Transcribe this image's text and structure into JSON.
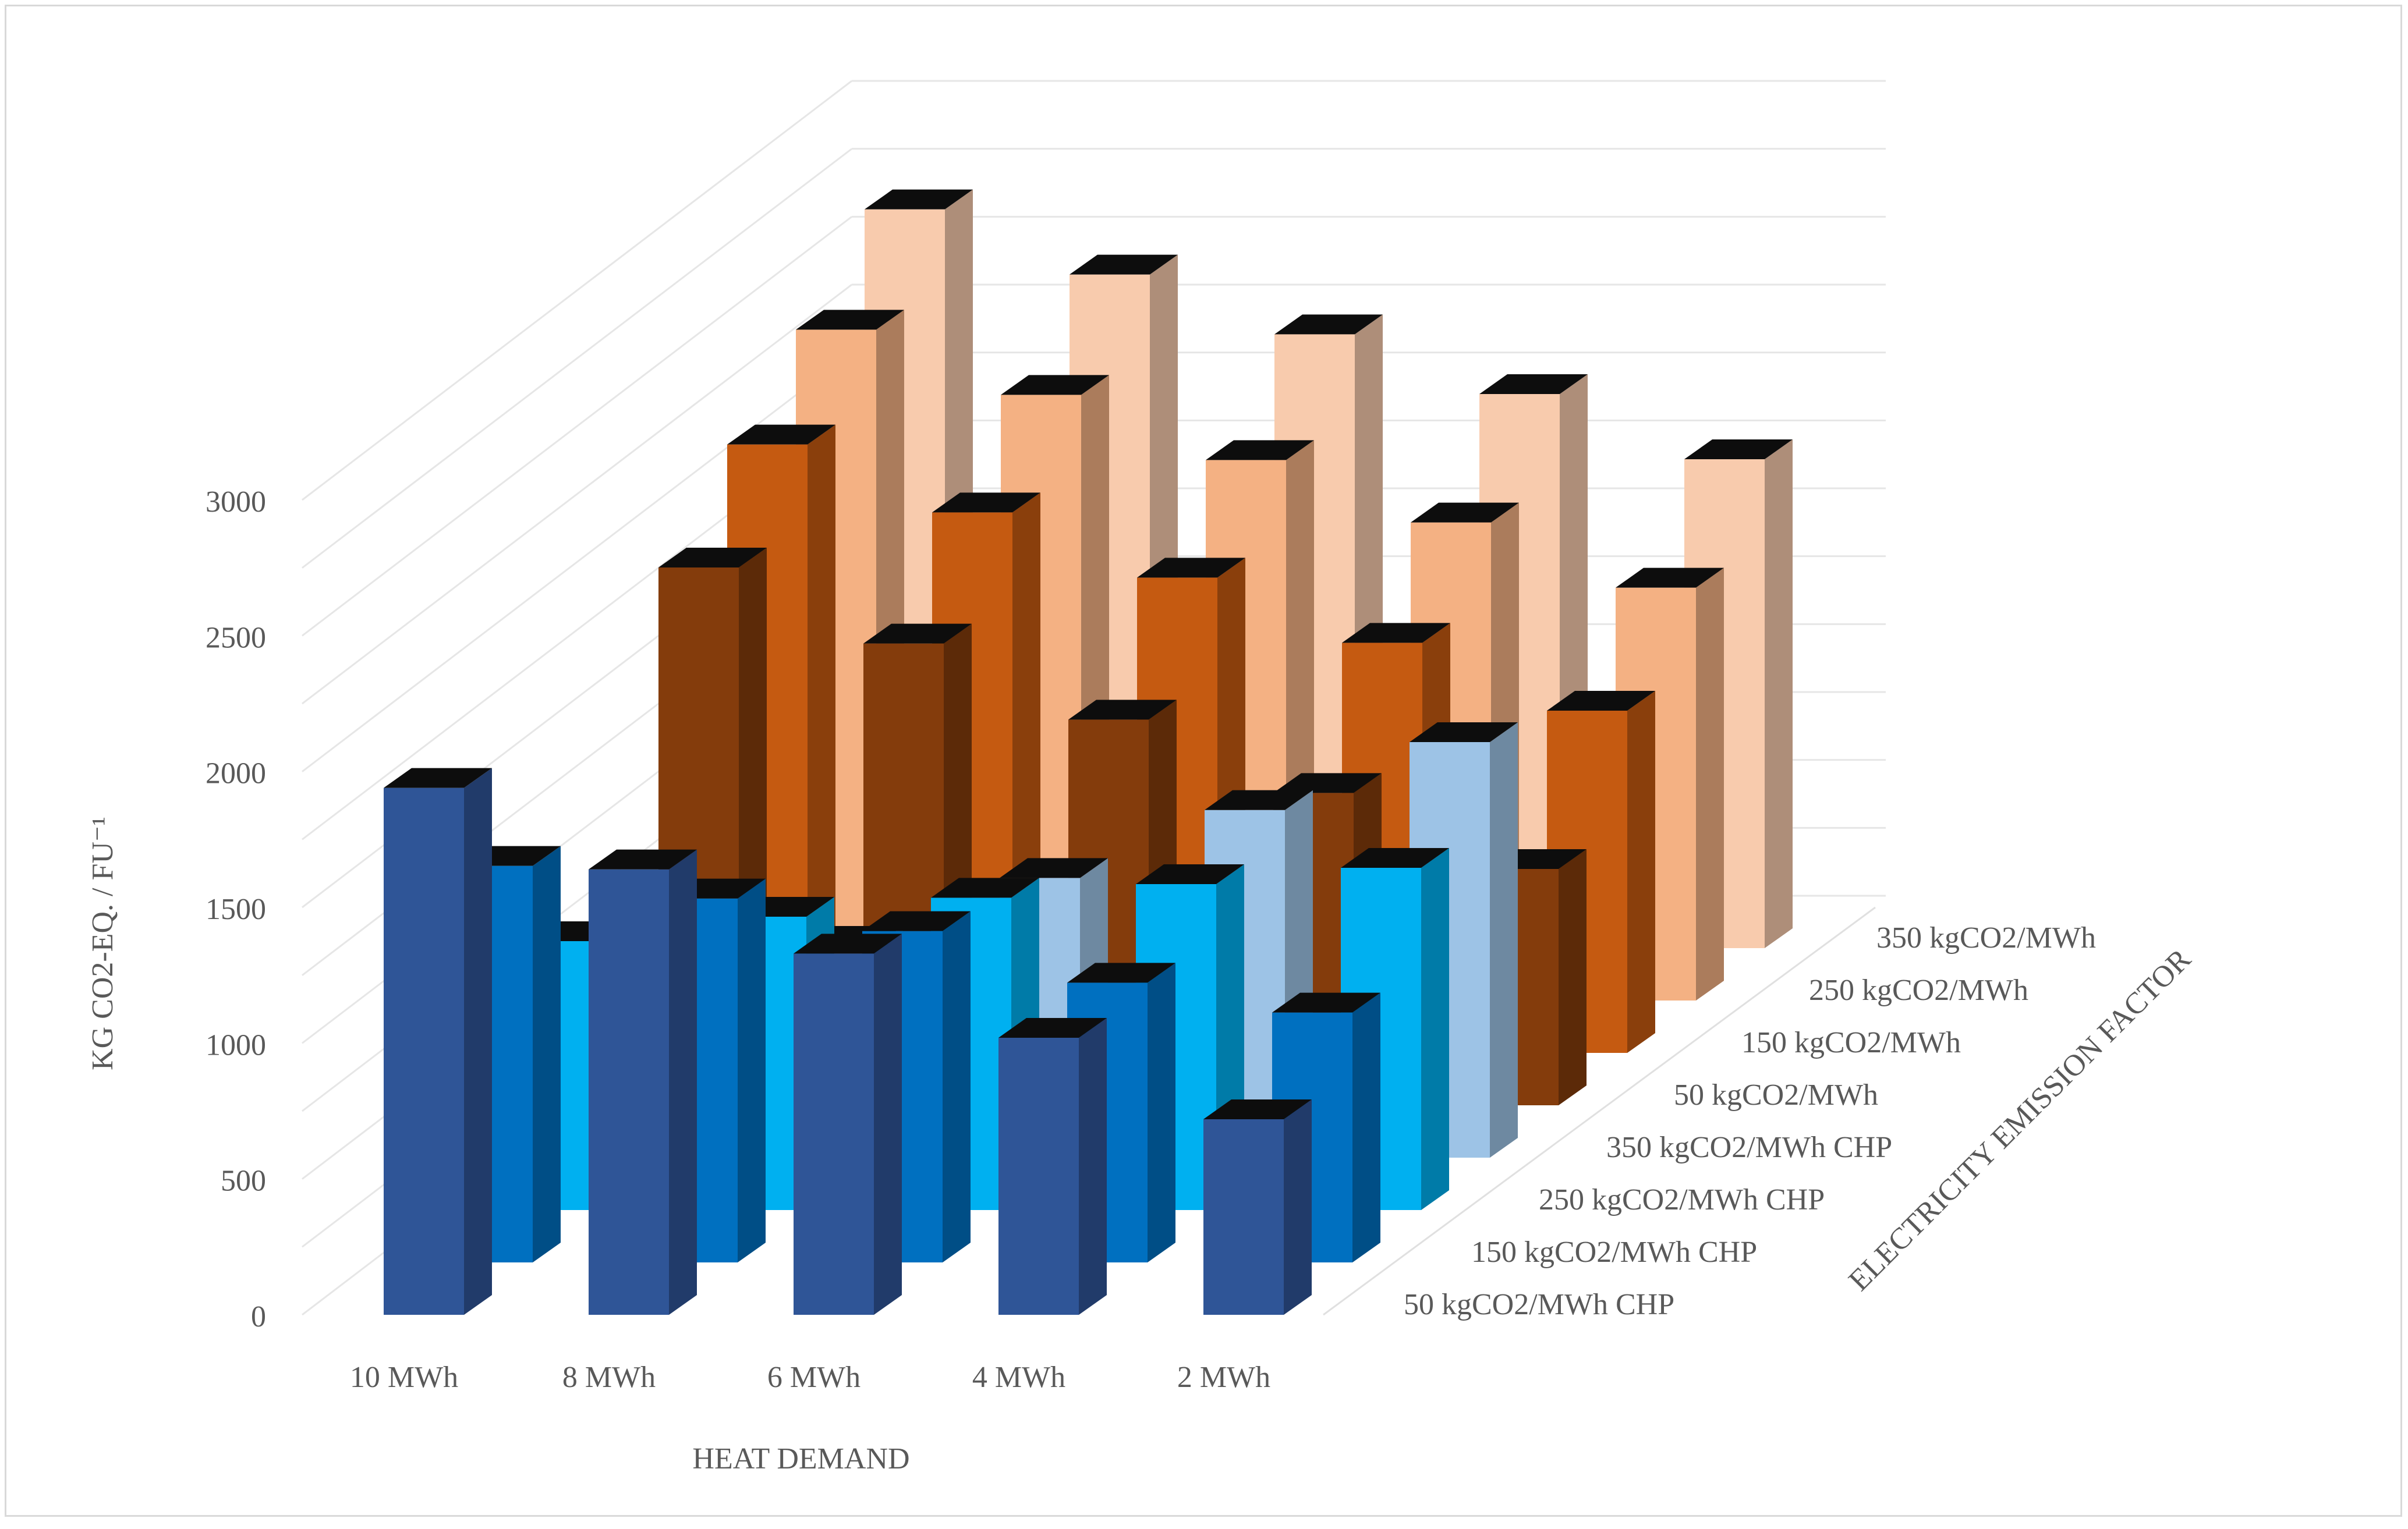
{
  "chart_data": {
    "type": "bar3d",
    "title": "",
    "xlabel": "HEAT DEMAND",
    "ylabel": "KG CO2-EQ. / FU⁻¹",
    "zlabel": "ELECTRICITY EMISSION FACTOR",
    "categories": [
      "10 MWh",
      "8 MWh",
      "6 MWh",
      "4 MWh",
      "2 MWh"
    ],
    "y_ticks": [
      "0",
      "500",
      "1000",
      "1500",
      "2000",
      "2500",
      "3000"
    ],
    "ylim": [
      0,
      3000
    ],
    "series": [
      {
        "name": "50 kgCO2/MWh CHP",
        "color": "#2f5597",
        "values": [
          1940,
          1640,
          1330,
          1020,
          720
        ]
      },
      {
        "name": "150 kgCO2/MWh CHP",
        "color": "#0070c0",
        "values": [
          1460,
          1340,
          1220,
          1030,
          920
        ]
      },
      {
        "name": "250 kgCO2/MWh CHP",
        "color": "#00b0f0",
        "values": [
          990,
          1080,
          1150,
          1200,
          1260
        ]
      },
      {
        "name": "350 kgCO2/MWh CHP",
        "color": "#9dc3e6",
        "values": [
          550,
          780,
          1030,
          1280,
          1530
        ]
      },
      {
        "name": "50 kgCO2/MWh",
        "color": "#843c0c",
        "values": [
          1980,
          1700,
          1420,
          1150,
          870
        ]
      },
      {
        "name": "150 kgCO2/MWh",
        "color": "#c55a11",
        "values": [
          2240,
          1990,
          1750,
          1510,
          1260
        ]
      },
      {
        "name": "250 kgCO2/MWh",
        "color": "#f4b183",
        "values": [
          2470,
          2230,
          1990,
          1760,
          1520
        ]
      },
      {
        "name": "350 kgCO2/MWh",
        "color": "#f8cbad",
        "values": [
          2720,
          2480,
          2260,
          2040,
          1800
        ]
      }
    ]
  }
}
